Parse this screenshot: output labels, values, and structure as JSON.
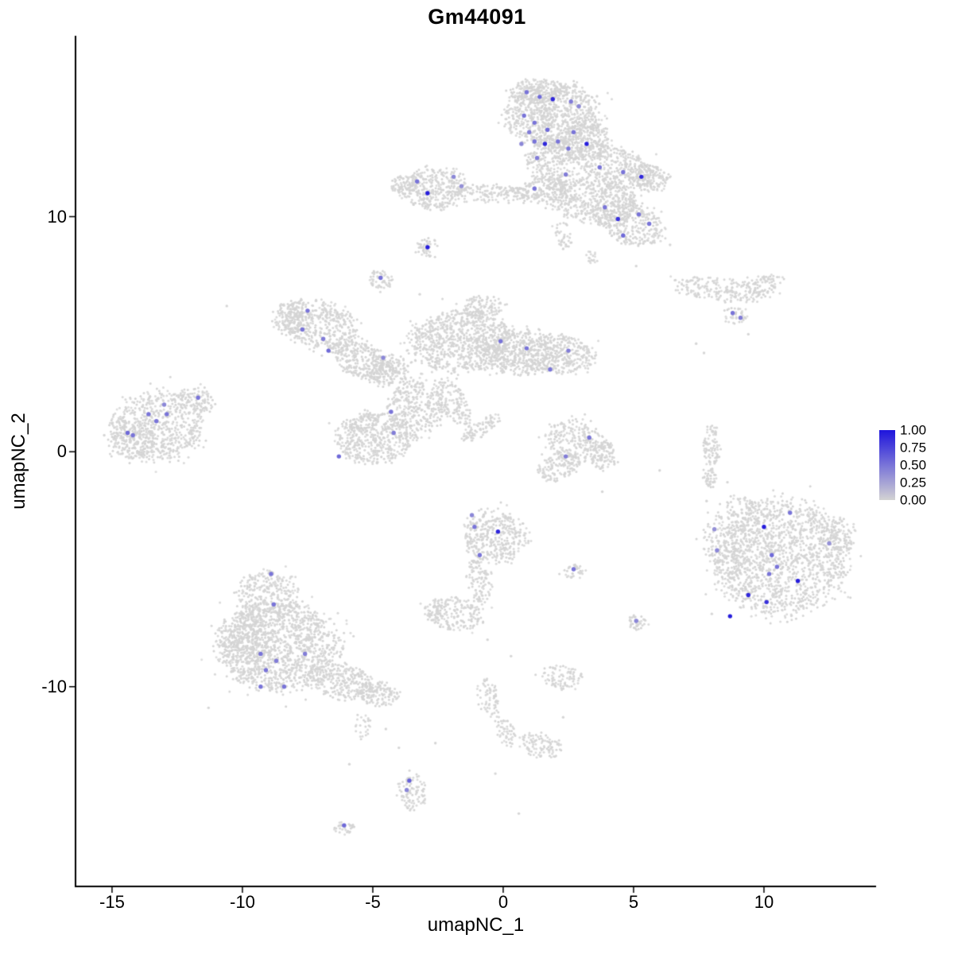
{
  "chart_data": {
    "type": "scatter",
    "title": "Gm44091",
    "xlabel": "umapNC_1",
    "ylabel": "umapNC_2",
    "x_ticks": [
      -15,
      -10,
      -5,
      0,
      5,
      10
    ],
    "y_ticks": [
      10,
      0,
      -10
    ],
    "x_range": [
      -16.4,
      14.3
    ],
    "y_range": [
      -18.5,
      17.7
    ],
    "grid": false,
    "legend_position": "right",
    "colors": {
      "background": "#ffffff",
      "point_base": "#d4d4d4",
      "scale_low": "#d3d3d3",
      "scale_high": "#1e14dc",
      "axis": "#000000"
    },
    "legend": {
      "labels": [
        "1.00",
        "0.75",
        "0.50",
        "0.25",
        "0.00"
      ],
      "values": [
        1.0,
        0.75,
        0.5,
        0.25,
        0.0
      ]
    },
    "clusters": [
      [
        1.9,
        14.3,
        1.8,
        1.4,
        850,
        0
      ],
      [
        1.4,
        15.4,
        1.1,
        0.5,
        150,
        0
      ],
      [
        1.8,
        12.4,
        0.9,
        1.0,
        260,
        0
      ],
      [
        3.1,
        13.3,
        1.0,
        0.9,
        250,
        0
      ],
      [
        4.3,
        12.1,
        1.7,
        0.85,
        380,
        -18
      ],
      [
        5.6,
        11.6,
        0.8,
        0.6,
        130,
        0
      ],
      [
        -2.6,
        11.2,
        1.3,
        0.9,
        330,
        0
      ],
      [
        -3.8,
        11.3,
        0.5,
        0.45,
        70,
        0
      ],
      [
        -0.4,
        11.0,
        1.7,
        0.4,
        170,
        -3
      ],
      [
        1.6,
        11.1,
        1.1,
        0.5,
        130,
        5
      ],
      [
        3.5,
        10.7,
        1.8,
        1.0,
        520,
        -12
      ],
      [
        4.9,
        9.7,
        1.4,
        0.85,
        300,
        -25
      ],
      [
        2.3,
        9.2,
        0.3,
        0.6,
        40,
        10
      ],
      [
        3.4,
        8.3,
        0.25,
        0.3,
        18,
        0
      ],
      [
        -2.9,
        8.7,
        0.4,
        0.42,
        45,
        0
      ],
      [
        -4.7,
        7.3,
        0.45,
        0.45,
        55,
        0
      ],
      [
        8.3,
        6.9,
        1.8,
        0.5,
        190,
        -7
      ],
      [
        10.0,
        7.1,
        0.8,
        0.4,
        80,
        10
      ],
      [
        8.9,
        5.8,
        0.5,
        0.35,
        40,
        0
      ],
      [
        -7.0,
        5.4,
        1.5,
        1.0,
        420,
        -15
      ],
      [
        -8.1,
        5.7,
        0.7,
        0.7,
        140,
        0
      ],
      [
        -5.4,
        3.9,
        1.3,
        0.75,
        280,
        -30
      ],
      [
        -4.4,
        3.5,
        0.8,
        0.65,
        170,
        0
      ],
      [
        -1.6,
        4.7,
        2.0,
        1.3,
        850,
        0
      ],
      [
        0.6,
        4.3,
        1.4,
        0.95,
        420,
        0
      ],
      [
        2.2,
        4.1,
        1.3,
        0.8,
        330,
        0
      ],
      [
        -0.8,
        6.2,
        0.8,
        0.45,
        100,
        0
      ],
      [
        -3.3,
        1.9,
        1.1,
        1.2,
        330,
        15
      ],
      [
        -4.9,
        0.6,
        1.5,
        1.1,
        520,
        8
      ],
      [
        -1.9,
        2.1,
        0.5,
        1.1,
        130,
        25
      ],
      [
        -0.9,
        1.0,
        0.9,
        0.35,
        80,
        35
      ],
      [
        -13.2,
        1.1,
        1.8,
        1.5,
        650,
        8
      ],
      [
        -11.7,
        2.2,
        0.7,
        0.5,
        80,
        -20
      ],
      [
        -14.2,
        0.5,
        0.9,
        0.8,
        160,
        0
      ],
      [
        2.8,
        0.4,
        1.2,
        0.9,
        260,
        -25
      ],
      [
        2.1,
        -0.7,
        0.8,
        0.55,
        120,
        20
      ],
      [
        3.9,
        -0.2,
        0.5,
        0.7,
        90,
        0
      ],
      [
        8.0,
        0.2,
        0.32,
        0.95,
        90,
        0
      ],
      [
        7.9,
        -1.1,
        0.28,
        0.5,
        40,
        0
      ],
      [
        10.6,
        -4.5,
        2.6,
        2.45,
        1550,
        0
      ],
      [
        8.6,
        -3.9,
        0.9,
        1.4,
        130,
        10
      ],
      [
        9.3,
        -2.4,
        1.0,
        0.5,
        70,
        -15
      ],
      [
        12.9,
        -3.6,
        0.6,
        0.8,
        80,
        0
      ],
      [
        -0.3,
        -3.6,
        1.2,
        1.1,
        380,
        0
      ],
      [
        -0.9,
        -5.5,
        0.5,
        1.0,
        110,
        8
      ],
      [
        -1.9,
        -6.9,
        1.1,
        0.7,
        220,
        -10
      ],
      [
        2.7,
        -5.1,
        0.45,
        0.3,
        35,
        0
      ],
      [
        5.1,
        -7.3,
        0.4,
        0.35,
        40,
        0
      ],
      [
        -8.6,
        -8.3,
        2.3,
        1.9,
        1250,
        0
      ],
      [
        -9.0,
        -6.1,
        1.2,
        1.1,
        300,
        0
      ],
      [
        -9.9,
        -8.0,
        1.0,
        1.3,
        250,
        0
      ],
      [
        -6.1,
        -9.8,
        1.5,
        0.75,
        300,
        -16
      ],
      [
        -4.8,
        -10.3,
        0.8,
        0.5,
        110,
        -10
      ],
      [
        -5.4,
        -11.6,
        0.3,
        0.6,
        25,
        0
      ],
      [
        2.3,
        -9.6,
        0.8,
        0.5,
        90,
        -8
      ],
      [
        -0.6,
        -10.5,
        0.4,
        0.9,
        70,
        12
      ],
      [
        0.1,
        -11.9,
        0.35,
        0.75,
        55,
        18
      ],
      [
        1.4,
        -12.5,
        0.8,
        0.5,
        100,
        -12
      ],
      [
        -3.5,
        -14.5,
        0.5,
        0.85,
        95,
        5
      ],
      [
        -6.1,
        -16.0,
        0.4,
        0.28,
        32,
        0
      ]
    ],
    "singles": [
      [
        -10.6,
        6.2
      ],
      [
        -3.2,
        6.7
      ],
      [
        5.1,
        7.9
      ],
      [
        6.4,
        8.8
      ],
      [
        7.4,
        4.6
      ],
      [
        7.7,
        4.2
      ],
      [
        8.6,
        -1.3
      ],
      [
        3.8,
        -1.7
      ],
      [
        9.0,
        -2.7
      ],
      [
        7.8,
        -2.1
      ],
      [
        8.0,
        -6.9
      ],
      [
        -0.6,
        -8.0
      ],
      [
        0.3,
        -8.7
      ],
      [
        -4.0,
        -12.6
      ],
      [
        -0.3,
        -13.7
      ],
      [
        2.3,
        -11.3
      ],
      [
        -11.3,
        -10.9
      ],
      [
        -5.9,
        -13.3
      ],
      [
        -4.5,
        -11.8
      ],
      [
        0.6,
        -15.4
      ],
      [
        -2.6,
        -12.4
      ],
      [
        6.0,
        -0.8
      ],
      [
        9.4,
        5.0
      ],
      [
        -15.3,
        0.7
      ]
    ],
    "expressed": [
      [
        0.9,
        15.3,
        0.5
      ],
      [
        1.4,
        15.1,
        0.55
      ],
      [
        1.9,
        15.0,
        0.9
      ],
      [
        2.6,
        14.9,
        0.45
      ],
      [
        2.9,
        14.7,
        0.4
      ],
      [
        0.8,
        14.3,
        0.5
      ],
      [
        1.2,
        14.0,
        0.5
      ],
      [
        1.0,
        13.6,
        0.45
      ],
      [
        1.7,
        13.7,
        0.55
      ],
      [
        2.7,
        13.6,
        0.5
      ],
      [
        0.7,
        13.1,
        0.4
      ],
      [
        1.2,
        13.2,
        0.5
      ],
      [
        1.6,
        13.1,
        0.9
      ],
      [
        2.1,
        13.2,
        0.5
      ],
      [
        3.2,
        13.1,
        0.95
      ],
      [
        2.5,
        12.9,
        0.5
      ],
      [
        1.3,
        12.5,
        0.45
      ],
      [
        -3.3,
        11.5,
        0.5
      ],
      [
        -2.9,
        11.0,
        0.95
      ],
      [
        -1.9,
        11.7,
        0.4
      ],
      [
        -1.6,
        11.3,
        0.35
      ],
      [
        1.2,
        11.2,
        0.5
      ],
      [
        2.4,
        11.8,
        0.45
      ],
      [
        3.7,
        12.1,
        0.5
      ],
      [
        4.6,
        11.9,
        0.5
      ],
      [
        5.3,
        11.7,
        0.9
      ],
      [
        3.9,
        10.4,
        0.5
      ],
      [
        4.4,
        9.9,
        0.85
      ],
      [
        5.2,
        10.1,
        0.5
      ],
      [
        5.6,
        9.7,
        0.5
      ],
      [
        4.6,
        9.2,
        0.55
      ],
      [
        -2.9,
        8.7,
        0.95
      ],
      [
        -4.7,
        7.4,
        0.5
      ],
      [
        8.8,
        5.9,
        0.5
      ],
      [
        9.1,
        5.7,
        0.45
      ],
      [
        -7.5,
        6.0,
        0.5
      ],
      [
        -7.7,
        5.2,
        0.5
      ],
      [
        -6.9,
        4.8,
        0.45
      ],
      [
        -6.7,
        4.3,
        0.55
      ],
      [
        -4.6,
        4.0,
        0.4
      ],
      [
        -0.1,
        4.7,
        0.5
      ],
      [
        0.9,
        4.4,
        0.5
      ],
      [
        1.8,
        3.5,
        0.5
      ],
      [
        2.5,
        4.3,
        0.45
      ],
      [
        -4.3,
        1.7,
        0.5
      ],
      [
        -4.2,
        0.8,
        0.45
      ],
      [
        -6.3,
        -0.2,
        0.55
      ],
      [
        -14.4,
        0.8,
        0.55
      ],
      [
        -14.2,
        0.7,
        0.5
      ],
      [
        -13.6,
        1.6,
        0.5
      ],
      [
        -13.3,
        1.3,
        0.5
      ],
      [
        -12.9,
        1.6,
        0.5
      ],
      [
        -13.0,
        2.0,
        0.4
      ],
      [
        -11.7,
        2.3,
        0.5
      ],
      [
        3.3,
        0.6,
        0.5
      ],
      [
        2.4,
        -0.2,
        0.45
      ],
      [
        11.0,
        -2.6,
        0.5
      ],
      [
        10.0,
        -3.2,
        0.95
      ],
      [
        12.5,
        -3.9,
        0.35
      ],
      [
        10.3,
        -4.4,
        0.55
      ],
      [
        10.5,
        -4.9,
        0.5
      ],
      [
        10.2,
        -5.2,
        0.5
      ],
      [
        11.3,
        -5.5,
        0.95
      ],
      [
        9.4,
        -6.1,
        0.9
      ],
      [
        10.1,
        -6.4,
        0.85
      ],
      [
        8.7,
        -7.0,
        0.95
      ],
      [
        8.2,
        -4.2,
        0.4
      ],
      [
        8.1,
        -3.3,
        0.35
      ],
      [
        -1.1,
        -3.2,
        0.5
      ],
      [
        -0.2,
        -3.4,
        0.9
      ],
      [
        -1.2,
        -2.7,
        0.4
      ],
      [
        -0.9,
        -4.4,
        0.5
      ],
      [
        2.7,
        -5.0,
        0.5
      ],
      [
        5.1,
        -7.2,
        0.4
      ],
      [
        -8.9,
        -5.2,
        0.5
      ],
      [
        -8.8,
        -6.5,
        0.5
      ],
      [
        -9.3,
        -8.6,
        0.5
      ],
      [
        -8.7,
        -8.9,
        0.45
      ],
      [
        -9.1,
        -9.3,
        0.5
      ],
      [
        -7.6,
        -8.6,
        0.45
      ],
      [
        -9.3,
        -10.0,
        0.5
      ],
      [
        -8.4,
        -10.0,
        0.5
      ],
      [
        -3.6,
        -14.0,
        0.6
      ],
      [
        -3.7,
        -14.4,
        0.4
      ],
      [
        -6.1,
        -15.9,
        0.55
      ]
    ]
  }
}
